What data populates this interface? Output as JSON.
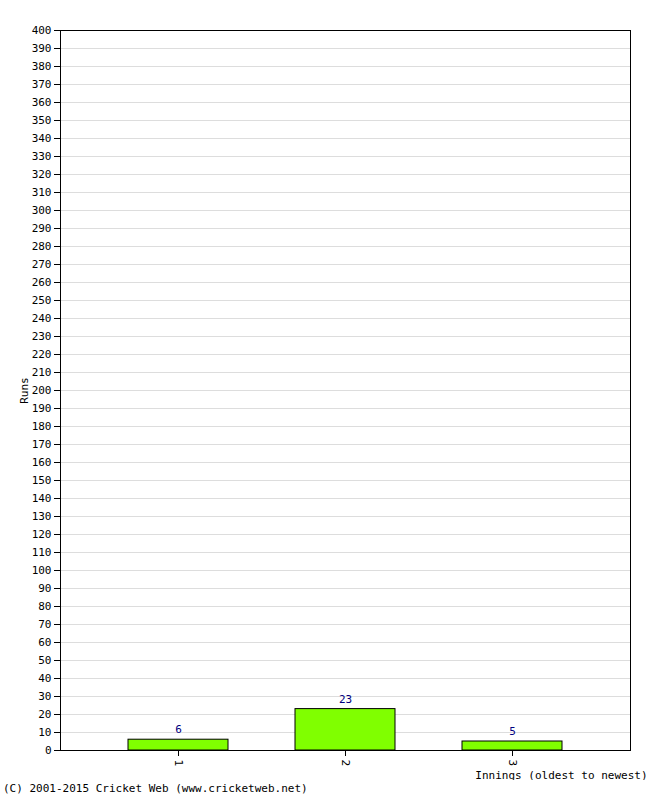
{
  "chart_data": {
    "type": "bar",
    "x_label": "Innings (oldest to newest)",
    "y_label": "Runs",
    "caption": "(C) 2001-2015 Cricket Web (www.cricketweb.net)",
    "categories": [
      "1",
      "2",
      "3"
    ],
    "values": [
      6,
      23,
      5
    ],
    "color": "#80ff00",
    "data_labels": true,
    "grid": true,
    "ylim": [
      0,
      400
    ],
    "yticks": [
      0,
      10,
      20,
      30,
      40,
      50,
      60,
      70,
      80,
      90,
      100,
      110,
      120,
      130,
      140,
      150,
      160,
      170,
      180,
      190,
      200,
      210,
      220,
      230,
      240,
      250,
      260,
      270,
      280,
      290,
      300,
      310,
      320,
      330,
      340,
      350,
      360,
      370,
      380,
      390,
      400
    ]
  }
}
